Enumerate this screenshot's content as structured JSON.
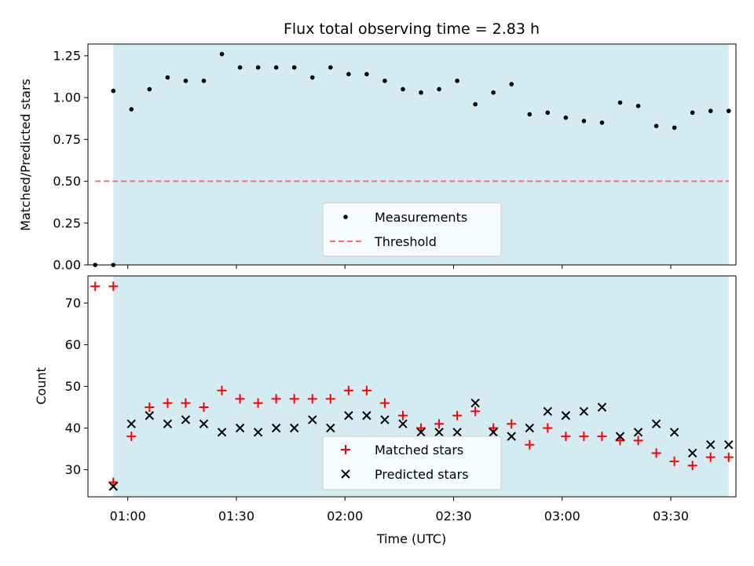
{
  "chart_data": [
    {
      "type": "scatter",
      "title": "Flux total observing time = 2.83 h",
      "ylabel": "Matched/Predicted stars",
      "xlabel": "",
      "xlim": [
        "00:49",
        "03:48"
      ],
      "ylim": [
        0,
        1.32
      ],
      "yticks": [
        0.0,
        0.25,
        0.5,
        0.75,
        1.0,
        1.25
      ],
      "ytick_labels": [
        "0.00",
        "0.25",
        "0.50",
        "0.75",
        "1.00",
        "1.25"
      ],
      "xticks": [
        "01:00",
        "01:30",
        "02:00",
        "02:30",
        "03:00",
        "03:30"
      ],
      "shaded_region": [
        "00:56",
        "03:46"
      ],
      "shaded_color": "#d4ebf2",
      "legend_position": "lower-center",
      "series": [
        {
          "name": "Measurements",
          "marker": "dot",
          "color": "#000000",
          "x": [
            "00:51",
            "00:56",
            "00:56",
            "01:01",
            "01:06",
            "01:11",
            "01:16",
            "01:21",
            "01:26",
            "01:31",
            "01:36",
            "01:41",
            "01:46",
            "01:51",
            "01:56",
            "02:01",
            "02:06",
            "02:11",
            "02:16",
            "02:21",
            "02:26",
            "02:31",
            "02:36",
            "02:41",
            "02:46",
            "02:51",
            "02:56",
            "03:01",
            "03:06",
            "03:11",
            "03:16",
            "03:21",
            "03:26",
            "03:31",
            "03:36",
            "03:41",
            "03:46"
          ],
          "y": [
            0.0,
            0.0,
            1.04,
            0.93,
            1.05,
            1.12,
            1.1,
            1.1,
            1.26,
            1.18,
            1.18,
            1.18,
            1.18,
            1.12,
            1.18,
            1.14,
            1.14,
            1.1,
            1.05,
            1.03,
            1.05,
            1.1,
            0.96,
            1.03,
            1.08,
            0.9,
            0.91,
            0.88,
            0.86,
            0.85,
            0.97,
            0.95,
            0.83,
            0.82,
            0.91,
            0.92,
            0.92
          ]
        },
        {
          "name": "Threshold",
          "style": "dashed",
          "color": "#f07070",
          "x": [
            "00:51",
            "03:46"
          ],
          "y": [
            0.5,
            0.5
          ]
        }
      ]
    },
    {
      "type": "scatter",
      "title": "",
      "ylabel": "Count",
      "xlabel": "Time (UTC)",
      "xlim": [
        "00:49",
        "03:48"
      ],
      "ylim": [
        23.5,
        76.5
      ],
      "yticks": [
        30,
        40,
        50,
        60,
        70
      ],
      "ytick_labels": [
        "30",
        "40",
        "50",
        "60",
        "70"
      ],
      "xticks": [
        "01:00",
        "01:30",
        "02:00",
        "02:30",
        "03:00",
        "03:30"
      ],
      "shaded_region": [
        "00:56",
        "03:46"
      ],
      "shaded_color": "#d4ebf2",
      "legend_position": "lower-center",
      "series": [
        {
          "name": "Matched stars",
          "marker": "plus",
          "color": "#ff0000",
          "x": [
            "00:51",
            "00:56",
            "00:56",
            "01:01",
            "01:06",
            "01:11",
            "01:16",
            "01:21",
            "01:26",
            "01:31",
            "01:36",
            "01:41",
            "01:46",
            "01:51",
            "01:56",
            "02:01",
            "02:06",
            "02:11",
            "02:16",
            "02:21",
            "02:26",
            "02:31",
            "02:36",
            "02:41",
            "02:46",
            "02:51",
            "02:56",
            "03:01",
            "03:06",
            "03:11",
            "03:16",
            "03:21",
            "03:26",
            "03:31",
            "03:36",
            "03:41",
            "03:46"
          ],
          "y": [
            74,
            74,
            27,
            38,
            45,
            46,
            46,
            45,
            49,
            47,
            46,
            47,
            47,
            47,
            47,
            49,
            49,
            46,
            43,
            40,
            41,
            43,
            44,
            40,
            41,
            36,
            40,
            38,
            38,
            38,
            37,
            37,
            34,
            32,
            31,
            33,
            33
          ]
        },
        {
          "name": "Predicted stars",
          "marker": "x",
          "color": "#000000",
          "x": [
            "00:56",
            "01:01",
            "01:06",
            "01:11",
            "01:16",
            "01:21",
            "01:26",
            "01:31",
            "01:36",
            "01:41",
            "01:46",
            "01:51",
            "01:56",
            "02:01",
            "02:06",
            "02:11",
            "02:16",
            "02:21",
            "02:26",
            "02:31",
            "02:36",
            "02:41",
            "02:46",
            "02:51",
            "02:56",
            "03:01",
            "03:06",
            "03:11",
            "03:16",
            "03:21",
            "03:26",
            "03:31",
            "03:36",
            "03:41",
            "03:46"
          ],
          "y": [
            26,
            41,
            43,
            41,
            42,
            41,
            39,
            40,
            39,
            40,
            40,
            42,
            40,
            43,
            43,
            42,
            41,
            39,
            39,
            39,
            46,
            39,
            38,
            40,
            44,
            43,
            44,
            45,
            38,
            39,
            41,
            39,
            34,
            36,
            36
          ]
        }
      ]
    }
  ]
}
